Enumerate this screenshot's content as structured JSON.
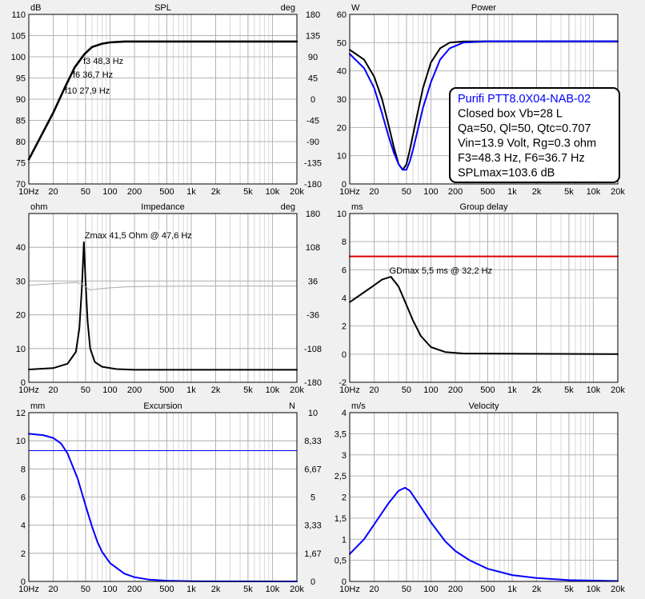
{
  "chart_data": [
    {
      "id": "spl",
      "type": "line",
      "title": "SPL",
      "left_unit": "dB",
      "right_unit": "deg",
      "x_scale": "log",
      "xlim": [
        10,
        20000
      ],
      "ylim": [
        70,
        110
      ],
      "y2lim": [
        -180,
        180
      ],
      "x_ticks": [
        "10Hz",
        "20",
        "50",
        "100",
        "200",
        "500",
        "1k",
        "2k",
        "5k",
        "10k",
        "20k"
      ],
      "y_ticks": [
        "70",
        "75",
        "80",
        "85",
        "90",
        "95",
        "100",
        "105",
        "110"
      ],
      "y2_ticks": [
        "-180",
        "-135",
        "-90",
        "-45",
        "0",
        "45",
        "90",
        "135",
        "180"
      ],
      "grid": true,
      "series": [
        {
          "color": "#000000",
          "width": 2.6,
          "points": [
            [
              10,
              75.8
            ],
            [
              20,
              86.8
            ],
            [
              27.9,
              92.8
            ],
            [
              36.7,
              97.5
            ],
            [
              48.3,
              100.6
            ],
            [
              60,
              102.3
            ],
            [
              80,
              103.1
            ],
            [
              100,
              103.4
            ],
            [
              150,
              103.6
            ],
            [
              20000,
              103.6
            ]
          ]
        }
      ],
      "annotations": [
        {
          "text": "f3 48,3 Hz",
          "x": 48.3,
          "y": 100.6
        },
        {
          "text": "f6 36,7 Hz",
          "x": 36.7,
          "y": 97.5
        },
        {
          "text": "f10 27,9 Hz",
          "x": 27.9,
          "y": 92.8
        }
      ]
    },
    {
      "id": "power",
      "type": "line",
      "title": "Power",
      "left_unit": "W",
      "x_scale": "log",
      "xlim": [
        10,
        20000
      ],
      "ylim": [
        0,
        60
      ],
      "x_ticks": [
        "10Hz",
        "20",
        "50",
        "100",
        "200",
        "500",
        "1k",
        "2k",
        "5k",
        "10k",
        "20k"
      ],
      "y_ticks": [
        "0",
        "10",
        "20",
        "30",
        "40",
        "50",
        "60"
      ],
      "grid": true,
      "series": [
        {
          "color": "#000000",
          "width": 2,
          "points": [
            [
              10,
              47.5
            ],
            [
              15,
              44
            ],
            [
              20,
              38
            ],
            [
              25,
              30
            ],
            [
              30,
              21
            ],
            [
              35,
              13
            ],
            [
              40,
              7
            ],
            [
              45,
              5
            ],
            [
              50,
              7
            ],
            [
              55,
              12
            ],
            [
              65,
              22
            ],
            [
              80,
              34
            ],
            [
              100,
              43
            ],
            [
              130,
              48
            ],
            [
              170,
              50
            ],
            [
              250,
              50.4
            ],
            [
              500,
              50.5
            ],
            [
              20000,
              50.5
            ]
          ]
        },
        {
          "color": "#0000ff",
          "width": 2,
          "points": [
            [
              10,
              46
            ],
            [
              15,
              41
            ],
            [
              20,
              34
            ],
            [
              25,
              25
            ],
            [
              30,
              17
            ],
            [
              35,
              11
            ],
            [
              40,
              7
            ],
            [
              45,
              5
            ],
            [
              50,
              5
            ],
            [
              55,
              8
            ],
            [
              60,
              12
            ],
            [
              70,
              20
            ],
            [
              80,
              27
            ],
            [
              100,
              36
            ],
            [
              130,
              44
            ],
            [
              170,
              48
            ],
            [
              250,
              50
            ],
            [
              500,
              50.5
            ],
            [
              20000,
              50.5
            ]
          ]
        }
      ],
      "info_box": [
        {
          "text": "Purifi PTT8.0X04-NAB-02",
          "color": "#0000ff"
        },
        {
          "text": "Closed box Vb=28 L",
          "color": "#000000"
        },
        {
          "text": "Qa=50, Ql=50, Qtc=0.707",
          "color": "#000000"
        },
        {
          "text": "Vin=13.9 Volt, Rg=0.3 ohm",
          "color": "#000000"
        },
        {
          "text": "F3=48.3 Hz, F6=36.7 Hz",
          "color": "#000000"
        },
        {
          "text": "SPLmax=103.6 dB",
          "color": "#000000"
        }
      ]
    },
    {
      "id": "impedance",
      "type": "line",
      "title": "Impedance",
      "left_unit": "ohm",
      "right_unit": "deg",
      "x_scale": "log",
      "xlim": [
        10,
        20000
      ],
      "ylim": [
        0,
        50
      ],
      "y2lim": [
        -180,
        180
      ],
      "x_ticks": [
        "10Hz",
        "20",
        "50",
        "100",
        "200",
        "500",
        "1k",
        "2k",
        "5k",
        "10k",
        "20k"
      ],
      "y_ticks": [
        "0",
        "10",
        "20",
        "30",
        "40"
      ],
      "y2_ticks": [
        "-180",
        "-108",
        "-36",
        "36",
        "108",
        "180"
      ],
      "grid": true,
      "series": [
        {
          "color": "#000000",
          "width": 2,
          "points": [
            [
              10,
              3.8
            ],
            [
              20,
              4.2
            ],
            [
              30,
              5.5
            ],
            [
              38,
              9
            ],
            [
              42,
              16
            ],
            [
              45,
              28
            ],
            [
              47.6,
              41.5
            ],
            [
              50,
              30
            ],
            [
              53,
              18
            ],
            [
              57,
              10
            ],
            [
              65,
              6
            ],
            [
              80,
              4.6
            ],
            [
              120,
              3.9
            ],
            [
              200,
              3.7
            ],
            [
              20000,
              3.7
            ]
          ]
        },
        {
          "color": "#aaaaaa",
          "width": 1,
          "axis": "right",
          "points": [
            [
              10,
              27
            ],
            [
              15,
              29
            ],
            [
              20,
              30
            ],
            [
              30,
              32
            ],
            [
              38,
              33
            ],
            [
              45,
              30
            ],
            [
              52,
              22
            ],
            [
              56,
              17
            ],
            [
              65,
              18
            ],
            [
              90,
              21
            ],
            [
              150,
              23.5
            ],
            [
              300,
              24.5
            ],
            [
              1000,
              25
            ],
            [
              20000,
              25
            ]
          ]
        }
      ],
      "annotations": [
        {
          "text": "Zmax 41,5 Ohm @ 47,6 Hz",
          "x": 47.6,
          "y": 41.5
        }
      ]
    },
    {
      "id": "groupdelay",
      "type": "line",
      "title": "Group delay",
      "left_unit": "ms",
      "x_scale": "log",
      "xlim": [
        10,
        20000
      ],
      "ylim": [
        -2,
        10
      ],
      "x_ticks": [
        "10Hz",
        "20",
        "50",
        "100",
        "200",
        "500",
        "1k",
        "2k",
        "5k",
        "10k",
        "20k"
      ],
      "y_ticks": [
        "-2",
        "0",
        "2",
        "4",
        "6",
        "8",
        "10"
      ],
      "grid": true,
      "series": [
        {
          "color": "#000000",
          "width": 2,
          "points": [
            [
              10,
              3.7
            ],
            [
              15,
              4.4
            ],
            [
              20,
              4.9
            ],
            [
              25,
              5.3
            ],
            [
              32.2,
              5.5
            ],
            [
              40,
              4.8
            ],
            [
              50,
              3.5
            ],
            [
              60,
              2.4
            ],
            [
              75,
              1.3
            ],
            [
              100,
              0.5
            ],
            [
              150,
              0.15
            ],
            [
              250,
              0.05
            ],
            [
              20000,
              0
            ]
          ]
        },
        {
          "color": "#dd0000",
          "width": 2,
          "points": [
            [
              10,
              6.95
            ],
            [
              20000,
              6.95
            ]
          ]
        }
      ],
      "annotations": [
        {
          "text": "GDmax 5,5 ms  @ 32,2 Hz",
          "x": 32.2,
          "y": 5.5
        }
      ]
    },
    {
      "id": "excursion",
      "type": "line",
      "title": "Excursion",
      "left_unit": "mm",
      "right_unit": "N",
      "x_scale": "log",
      "xlim": [
        10,
        20000
      ],
      "ylim": [
        0,
        12
      ],
      "y2lim": [
        0,
        10
      ],
      "x_ticks": [
        "10Hz",
        "20",
        "50",
        "100",
        "200",
        "500",
        "1k",
        "2k",
        "5k",
        "10k",
        "20k"
      ],
      "y_ticks": [
        "0",
        "2",
        "4",
        "6",
        "8",
        "10",
        "12"
      ],
      "y2_ticks": [
        "0",
        "1,67",
        "3,33",
        "5",
        "6,67",
        "8,33",
        "10"
      ],
      "grid": true,
      "series": [
        {
          "color": "#0000ff",
          "width": 2,
          "points": [
            [
              10,
              10.5
            ],
            [
              15,
              10.4
            ],
            [
              20,
              10.2
            ],
            [
              25,
              9.8
            ],
            [
              30,
              9.1
            ],
            [
              40,
              7.3
            ],
            [
              50,
              5.4
            ],
            [
              60,
              3.9
            ],
            [
              70,
              2.8
            ],
            [
              80,
              2.1
            ],
            [
              100,
              1.3
            ],
            [
              150,
              0.55
            ],
            [
              200,
              0.3
            ],
            [
              300,
              0.13
            ],
            [
              500,
              0.05
            ],
            [
              1000,
              0.01
            ],
            [
              20000,
              0
            ]
          ]
        },
        {
          "color": "#0000ff",
          "width": 1,
          "points": [
            [
              10,
              9.3
            ],
            [
              20000,
              9.3
            ]
          ]
        }
      ]
    },
    {
      "id": "velocity",
      "type": "line",
      "title": "Velocity",
      "left_unit": "m/s",
      "x_scale": "log",
      "xlim": [
        10,
        20000
      ],
      "ylim": [
        0,
        4
      ],
      "x_ticks": [
        "10Hz",
        "20",
        "50",
        "100",
        "200",
        "500",
        "1k",
        "2k",
        "5k",
        "10k",
        "20k"
      ],
      "y_ticks": [
        "0",
        "0,5",
        "1",
        "1,5",
        "2",
        "2,5",
        "3",
        "3,5",
        "4"
      ],
      "grid": true,
      "series": [
        {
          "color": "#0000ff",
          "width": 2,
          "points": [
            [
              10,
              0.65
            ],
            [
              15,
              1.0
            ],
            [
              20,
              1.35
            ],
            [
              30,
              1.85
            ],
            [
              40,
              2.15
            ],
            [
              48,
              2.22
            ],
            [
              55,
              2.15
            ],
            [
              70,
              1.85
            ],
            [
              100,
              1.4
            ],
            [
              150,
              0.95
            ],
            [
              200,
              0.72
            ],
            [
              300,
              0.5
            ],
            [
              500,
              0.3
            ],
            [
              1000,
              0.15
            ],
            [
              2000,
              0.08
            ],
            [
              5000,
              0.03
            ],
            [
              20000,
              0.01
            ]
          ]
        }
      ]
    }
  ]
}
